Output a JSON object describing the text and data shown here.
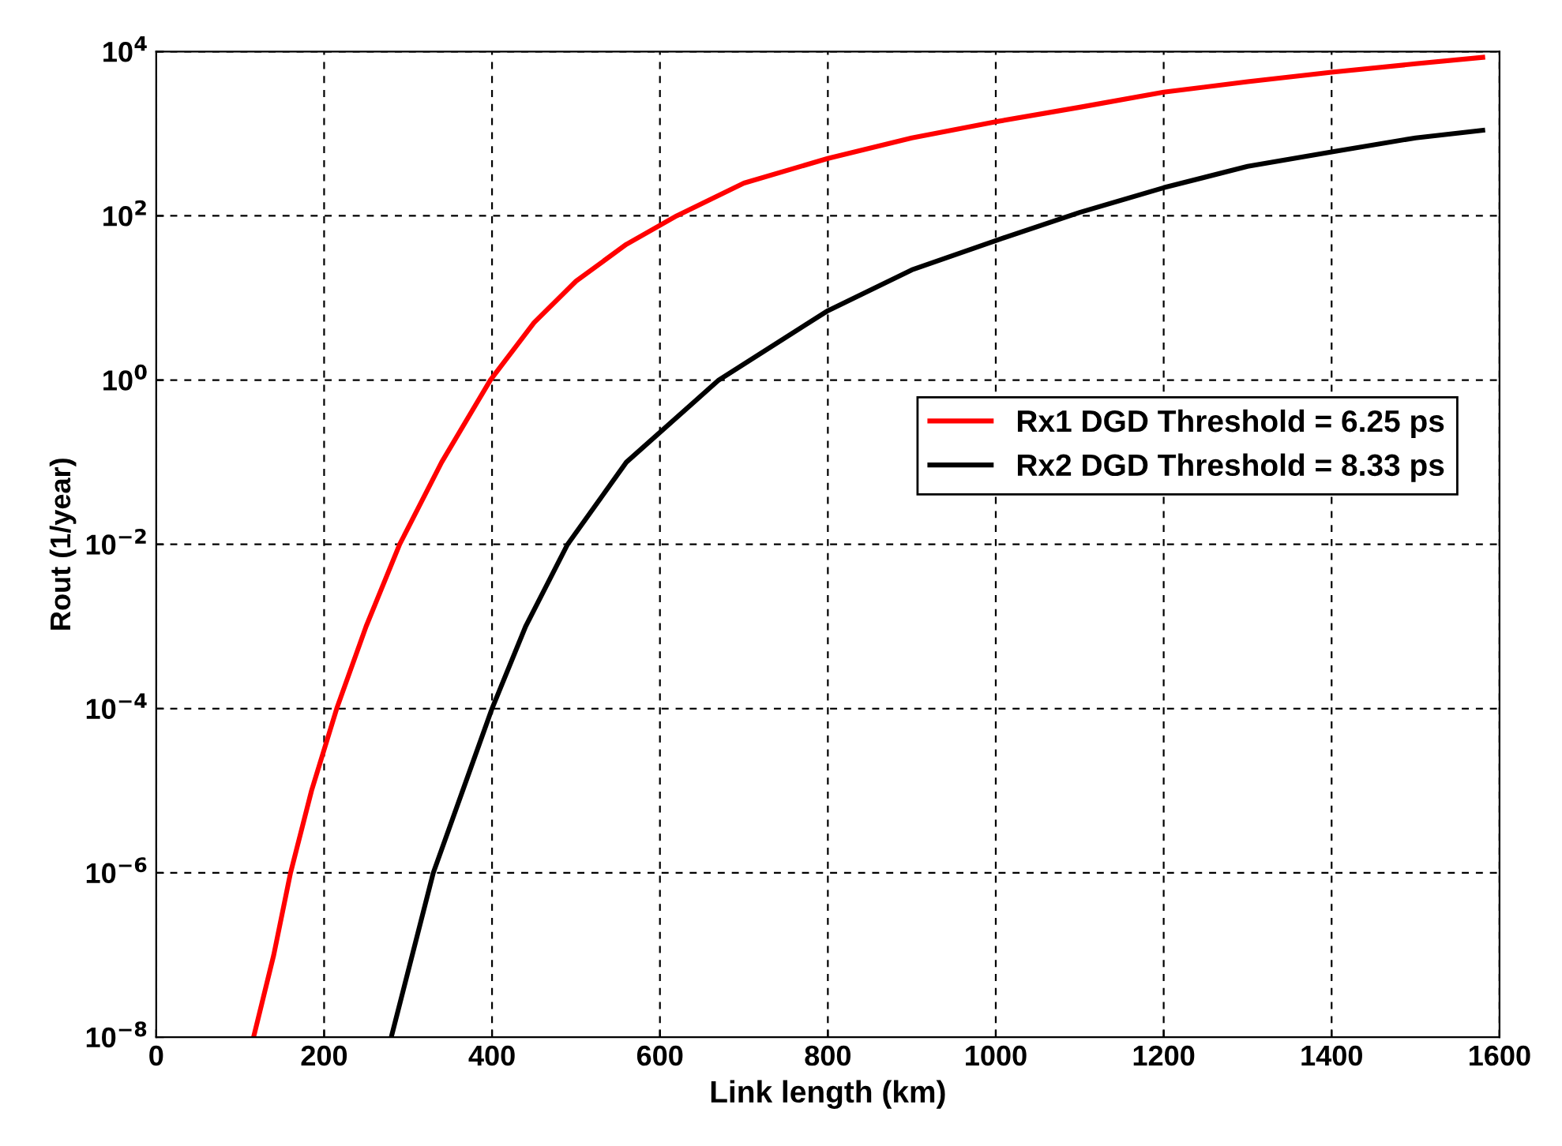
{
  "chart_data": {
    "type": "line",
    "xlabel": "Link length (km)",
    "ylabel": "Rout (1/year)",
    "log": "y",
    "grid": true,
    "legend": "center right",
    "line_style": "solid",
    "marker": "none",
    "xlim": [
      0,
      1600
    ],
    "xticks": [
      0,
      200,
      400,
      600,
      800,
      1000,
      1200,
      1400,
      1600
    ],
    "ylim": [
      1e-08,
      10000
    ],
    "yticks": [
      {
        "value": 1e-08,
        "label": "10$^{−8}$"
      },
      {
        "value": 1e-06,
        "label": "10$^{−6}$"
      },
      {
        "value": 0.0001,
        "label": "10$^{−4}$"
      },
      {
        "value": 0.01,
        "label": "10$^{−2}$"
      },
      {
        "value": 1,
        "label": "10$^{0}$"
      },
      {
        "value": 100,
        "label": "10$^{2}$"
      },
      {
        "value": 10000,
        "label": "10$^{4}$"
      }
    ],
    "series": [
      {
        "name": "Rx1 DGD Threshold = 6.25 ps",
        "color": "#ff0000",
        "x": [
          116,
          140,
          160,
          185,
          215,
          250,
          290,
          340,
          398,
          450,
          500,
          560,
          620,
          700,
          800,
          900,
          1000,
          1100,
          1200,
          1300,
          1400,
          1500,
          1580
        ],
        "values": [
          1e-08,
          1e-07,
          1e-06,
          1e-05,
          0.0001,
          0.001,
          0.01,
          0.1,
          1,
          5,
          16,
          45,
          100,
          250,
          500,
          890,
          1400,
          2100,
          3200,
          4300,
          5600,
          7100,
          8500
        ]
      },
      {
        "name": "Rx2 DGD Threshold = 8.33 ps",
        "color": "#000000",
        "x": [
          280,
          305,
          330,
          365,
          400,
          440,
          490,
          560,
          670,
          800,
          900,
          1000,
          1100,
          1200,
          1300,
          1400,
          1500,
          1580
        ],
        "values": [
          1e-08,
          1e-07,
          1e-06,
          1e-05,
          0.0001,
          0.001,
          0.01,
          0.1,
          1,
          7,
          22,
          50,
          110,
          220,
          400,
          600,
          890,
          1100
        ]
      }
    ]
  }
}
